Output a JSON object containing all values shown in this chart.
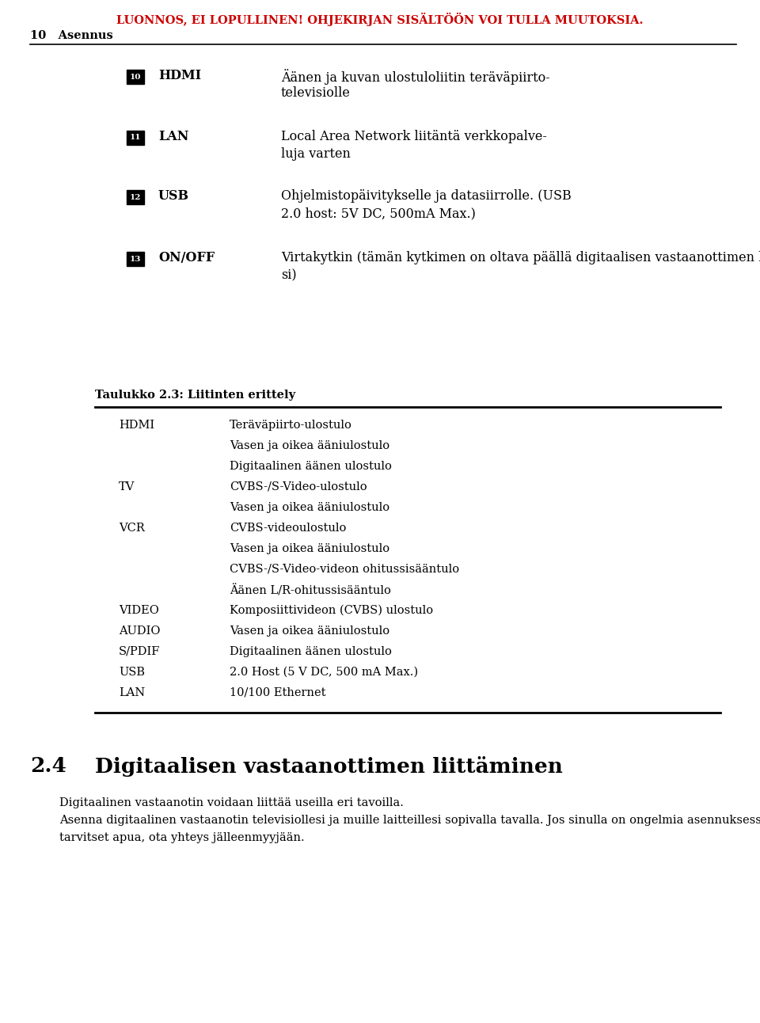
{
  "bg_color": "#ffffff",
  "header_text": "LUONNOS, EI LOPULLINEN! OHJEKIRJAN SISÄLTÖÖN VOI TULLA MUUTOKSIA.",
  "header_color": "#cc0000",
  "header_fontsize": 10.5,
  "page_label": "10   Asennus",
  "page_label_fontsize": 10.5,
  "numbered_items": [
    {
      "num": "10",
      "label": "HDMI",
      "desc_line1": "Äänen ja kuvan ulostuloliitin teräväpiirto-",
      "desc_line2": "televisiolle"
    },
    {
      "num": "11",
      "label": "LAN",
      "desc_line1": "Local Area Network liitäntä verkkopalve-",
      "desc_line2": "luja varten"
    },
    {
      "num": "12",
      "label": "USB",
      "desc_line1": "Ohjelmistopäivitykselle ja datasiirrolle. (USB",
      "desc_line2": "2.0 host: 5V DC, 500mA Max.)"
    },
    {
      "num": "13",
      "label": "ON/OFF",
      "desc_line1": "Virtakytkin (tämän kytkimen on oltava päällä digitaalisen vastaanottimen käyttämisek-",
      "desc_line2": "si)"
    }
  ],
  "table_title": "Taulukko 2.3: Liitinten erittely",
  "table_rows": [
    [
      "HDMI",
      "Teräväpiirto-ulostulo"
    ],
    [
      "",
      "Vasen ja oikea ääniulostulo"
    ],
    [
      "",
      "Digitaalinen äänen ulostulo"
    ],
    [
      "TV",
      "CVBS-/S-Video-ulostulo"
    ],
    [
      "",
      "Vasen ja oikea ääniulostulo"
    ],
    [
      "VCR",
      "CVBS-videoulostulo"
    ],
    [
      "",
      "Vasen ja oikea ääniulostulo"
    ],
    [
      "",
      "CVBS-/S-Video-videon ohitussisääntulo"
    ],
    [
      "",
      "Äänen L/R-ohitussisääntulo"
    ],
    [
      "VIDEO",
      "Komposiittivideon (CVBS) ulostulo"
    ],
    [
      "AUDIO",
      "Vasen ja oikea ääniulostulo"
    ],
    [
      "S/PDIF",
      "Digitaalinen äänen ulostulo"
    ],
    [
      "USB",
      "2.0 Host (5 V DC, 500 mA Max.)"
    ],
    [
      "LAN",
      "10/100 Ethernet"
    ]
  ],
  "section_number": "2.4",
  "section_heading": "Digitaalisen vastaanottimen liittäminen",
  "section_body_lines": [
    "Digitaalinen vastaanotin voidaan liittää useilla eri tavoilla.",
    "Asenna digitaalinen vastaanotin televisiollesi ja muille laitteillesi sopivalla tavalla. Jos sinulla on ongelmia asennuksessa tai",
    "tarvitset apua, ota yhteys jälleenmyyjään."
  ],
  "font_family": "DejaVu Serif"
}
